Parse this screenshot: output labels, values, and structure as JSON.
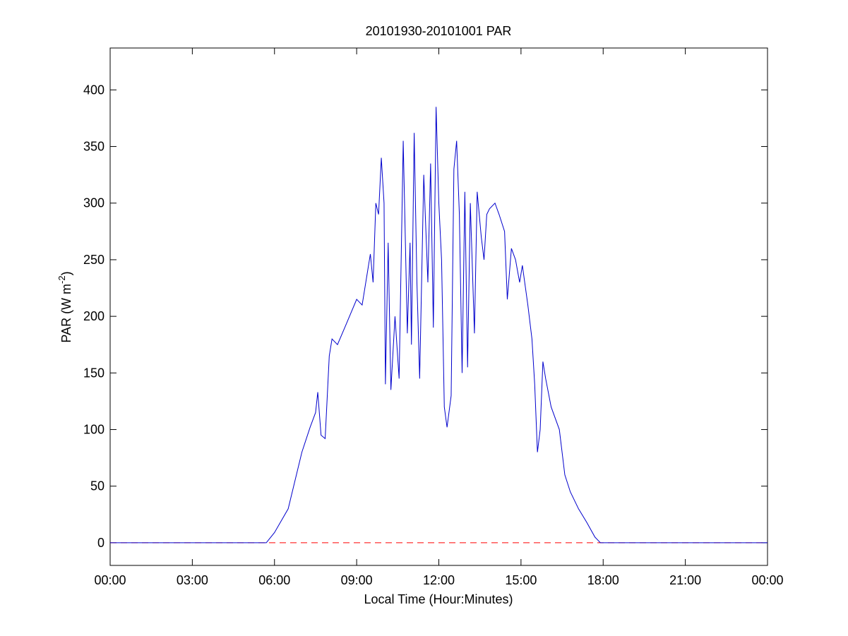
{
  "chart_data": {
    "type": "line",
    "title": "20101930-20101001 PAR",
    "x_label": "Local Time (Hour:Minutes)",
    "y_label": [
      "PAR (W m",
      "-2",
      ")"
    ],
    "xlim": [
      0,
      24
    ],
    "xticks": [
      {
        "value": 0,
        "label": "00:00"
      },
      {
        "value": 3,
        "label": "03:00"
      },
      {
        "value": 6,
        "label": "06:00"
      },
      {
        "value": 9,
        "label": "09:00"
      },
      {
        "value": 12,
        "label": "12:00"
      },
      {
        "value": 15,
        "label": "15:00"
      },
      {
        "value": 18,
        "label": "18:00"
      },
      {
        "value": 21,
        "label": "21:00"
      },
      {
        "value": 24,
        "label": "00:00"
      }
    ],
    "ylim": [
      -20,
      437
    ],
    "yticks": [
      0,
      50,
      100,
      150,
      200,
      250,
      300,
      350,
      400
    ],
    "grid": false,
    "series": [
      {
        "name": "PAR",
        "color": "#0000cc",
        "dash": false,
        "x": [
          0,
          5.7,
          6.0,
          6.5,
          7.0,
          7.3,
          7.5,
          7.58,
          7.7,
          7.85,
          8.0,
          8.1,
          8.3,
          8.6,
          9.0,
          9.2,
          9.3,
          9.5,
          9.6,
          9.7,
          9.8,
          9.9,
          10.0,
          10.05,
          10.15,
          10.25,
          10.4,
          10.55,
          10.7,
          10.85,
          10.95,
          11.0,
          11.1,
          11.2,
          11.3,
          11.45,
          11.6,
          11.7,
          11.8,
          11.9,
          12.0,
          12.1,
          12.2,
          12.3,
          12.45,
          12.55,
          12.65,
          12.75,
          12.85,
          12.95,
          13.05,
          13.15,
          13.3,
          13.4,
          13.55,
          13.65,
          13.75,
          13.85,
          14.05,
          14.2,
          14.4,
          14.5,
          14.65,
          14.8,
          14.95,
          15.05,
          15.25,
          15.4,
          15.5,
          15.6,
          15.7,
          15.8,
          15.9,
          16.1,
          16.4,
          16.6,
          16.8,
          17.1,
          17.4,
          17.7,
          17.9,
          24
        ],
        "values": [
          0,
          0,
          9,
          30,
          80,
          102,
          115,
          133,
          95,
          92,
          165,
          180,
          175,
          192,
          215,
          210,
          225,
          255,
          230,
          300,
          290,
          340,
          300,
          140,
          265,
          135,
          200,
          145,
          355,
          185,
          265,
          175,
          362,
          230,
          145,
          325,
          230,
          335,
          190,
          385,
          300,
          250,
          120,
          102,
          130,
          330,
          355,
          290,
          150,
          310,
          155,
          300,
          185,
          310,
          270,
          250,
          290,
          295,
          300,
          290,
          275,
          215,
          260,
          250,
          230,
          245,
          210,
          180,
          140,
          80,
          100,
          160,
          145,
          120,
          100,
          60,
          45,
          30,
          18,
          5,
          0,
          0
        ]
      },
      {
        "name": "zero",
        "color": "#ff0000",
        "dash": true,
        "x": [
          0,
          24
        ],
        "values": [
          0,
          0
        ]
      }
    ]
  }
}
